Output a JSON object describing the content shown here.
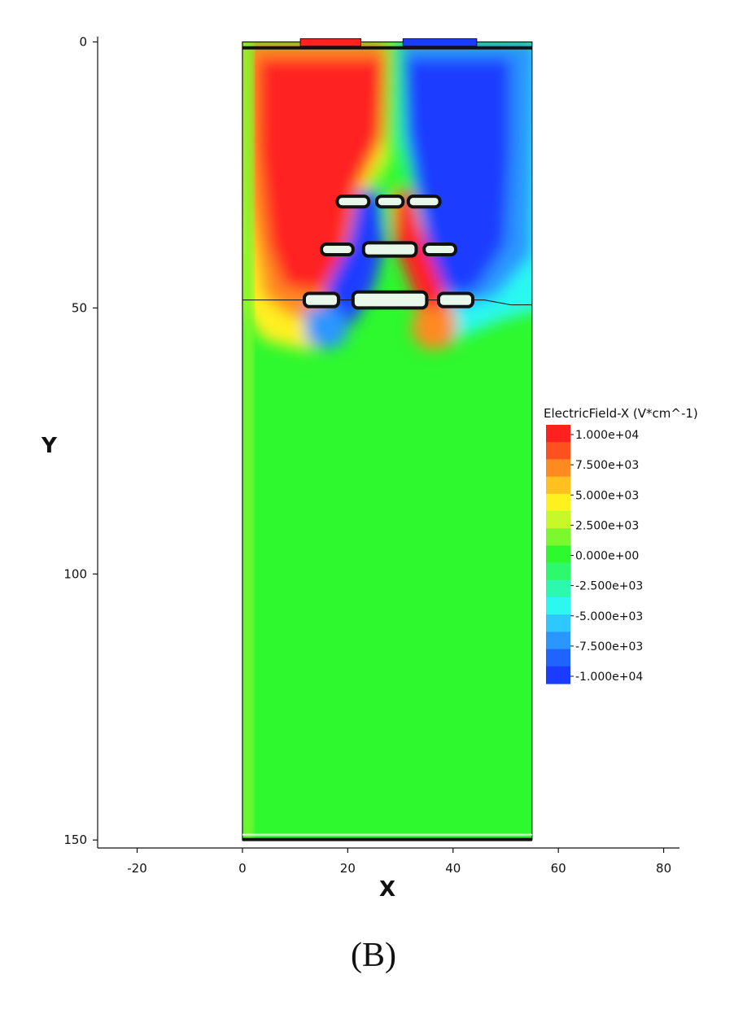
{
  "chart_data": {
    "type": "heatmap",
    "title": "",
    "xlabel": "X",
    "ylabel": "Y",
    "xlim": [
      -27.5,
      83
    ],
    "ylim": [
      151.5,
      -1
    ],
    "y_inverted": true,
    "x_ticks": [
      -20,
      0,
      20,
      40,
      60,
      80
    ],
    "y_ticks": [
      0,
      50,
      100,
      150
    ],
    "domain_x": [
      0,
      55
    ],
    "domain_y": [
      0,
      150
    ],
    "interface_y": 48.5,
    "colorbar": {
      "title": "ElectricField-X (V*cm^-1)",
      "min": -10000,
      "max": 10000,
      "tick_labels": [
        "1.000e+04",
        "7.500e+03",
        "5.000e+03",
        "2.500e+03",
        "0.000e+00",
        "-2.500e+03",
        "-5.000e+03",
        "-7.500e+03",
        "-1.000e+04"
      ],
      "colors": [
        "#ff2020",
        "#ff5020",
        "#ff8a20",
        "#ffc020",
        "#fff020",
        "#c8f82a",
        "#7cf82e",
        "#2ef82e",
        "#2ef86c",
        "#2cf8b0",
        "#2cf8f0",
        "#2cc8ff",
        "#2a96ff",
        "#2063ff",
        "#1a3cff"
      ]
    },
    "electrodes": [
      {
        "x": 21,
        "y": 30,
        "w": 6,
        "h": 2
      },
      {
        "x": 28,
        "y": 30,
        "w": 5,
        "h": 2
      },
      {
        "x": 34.5,
        "y": 30,
        "w": 6,
        "h": 2
      },
      {
        "x": 18,
        "y": 39,
        "w": 6,
        "h": 2
      },
      {
        "x": 28,
        "y": 39,
        "w": 10,
        "h": 2.5
      },
      {
        "x": 37.5,
        "y": 39,
        "w": 6,
        "h": 2
      },
      {
        "x": 15,
        "y": 48.5,
        "w": 6.5,
        "h": 2.5
      },
      {
        "x": 28,
        "y": 48.5,
        "w": 14,
        "h": 3
      },
      {
        "x": 40.5,
        "y": 48.5,
        "w": 6.5,
        "h": 2.5
      }
    ]
  },
  "caption": "(B)"
}
